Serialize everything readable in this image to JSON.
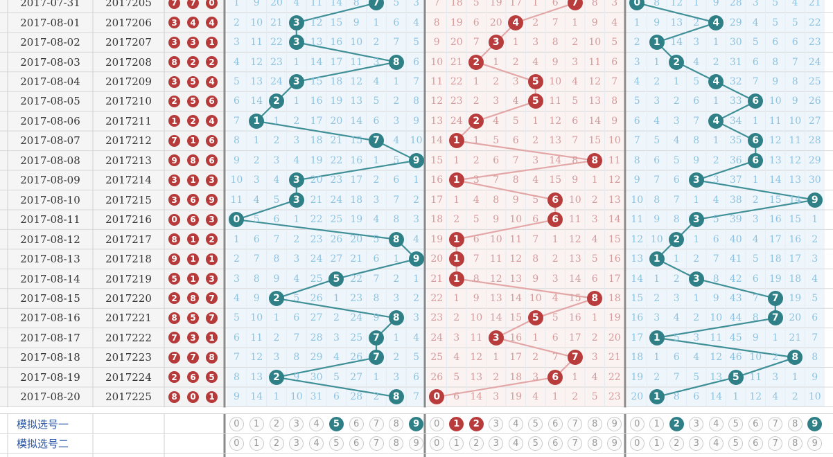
{
  "colors": {
    "teal": "#2f7f86",
    "red": "#b83c3c",
    "blue_digits": "#8ec3df",
    "red_digits": "#d49b9b"
  },
  "rows": [
    {
      "date": "2017-07-31",
      "issue": "2017205",
      "draw": [
        7,
        7,
        0
      ],
      "s1": [
        1,
        9,
        20,
        4,
        11,
        14,
        8,
        "7",
        5,
        3
      ],
      "s2": [
        7,
        18,
        5,
        19,
        17,
        1,
        6,
        "7",
        8,
        3
      ],
      "s3": [
        "0",
        8,
        12,
        1,
        9,
        28,
        3,
        5,
        4,
        21
      ]
    },
    {
      "date": "2017-08-01",
      "issue": "2017206",
      "draw": [
        3,
        4,
        4
      ],
      "s1": [
        2,
        10,
        21,
        "3",
        12,
        15,
        9,
        1,
        6,
        4
      ],
      "s2": [
        8,
        19,
        6,
        20,
        "4",
        2,
        7,
        1,
        9,
        4
      ],
      "s3": [
        1,
        9,
        13,
        2,
        "4",
        29,
        4,
        5,
        5,
        22
      ]
    },
    {
      "date": "2017-08-02",
      "issue": "2017207",
      "draw": [
        3,
        3,
        1
      ],
      "s1": [
        3,
        11,
        22,
        "3",
        13,
        16,
        10,
        2,
        7,
        5
      ],
      "s2": [
        9,
        20,
        7,
        "3",
        1,
        3,
        8,
        2,
        10,
        5
      ],
      "s3": [
        2,
        "1",
        14,
        3,
        1,
        30,
        5,
        6,
        6,
        23
      ]
    },
    {
      "date": "2017-08-03",
      "issue": "2017208",
      "draw": [
        8,
        2,
        2
      ],
      "s1": [
        4,
        12,
        23,
        1,
        14,
        17,
        11,
        3,
        "8",
        6
      ],
      "s2": [
        10,
        21,
        "2",
        1,
        2,
        4,
        9,
        3,
        11,
        6
      ],
      "s3": [
        3,
        1,
        "2",
        4,
        2,
        31,
        6,
        8,
        7,
        24
      ]
    },
    {
      "date": "2017-08-04",
      "issue": "2017209",
      "draw": [
        3,
        5,
        4
      ],
      "s1": [
        5,
        13,
        24,
        "3",
        15,
        18,
        12,
        4,
        1,
        7
      ],
      "s2": [
        11,
        22,
        1,
        2,
        3,
        "5",
        10,
        4,
        12,
        7
      ],
      "s3": [
        4,
        2,
        1,
        5,
        "4",
        32,
        7,
        9,
        8,
        25
      ]
    },
    {
      "date": "2017-08-05",
      "issue": "2017210",
      "draw": [
        2,
        5,
        6
      ],
      "s1": [
        6,
        14,
        "2",
        1,
        16,
        19,
        13,
        5,
        2,
        8
      ],
      "s2": [
        12,
        23,
        2,
        3,
        4,
        "5",
        11,
        5,
        13,
        8
      ],
      "s3": [
        5,
        3,
        2,
        6,
        1,
        33,
        "6",
        10,
        9,
        26
      ]
    },
    {
      "date": "2017-08-06",
      "issue": "2017211",
      "draw": [
        1,
        2,
        4
      ],
      "s1": [
        7,
        "1",
        1,
        2,
        17,
        20,
        14,
        6,
        3,
        9
      ],
      "s2": [
        13,
        24,
        "2",
        4,
        5,
        1,
        12,
        6,
        14,
        9
      ],
      "s3": [
        6,
        4,
        3,
        7,
        "4",
        34,
        1,
        11,
        10,
        27
      ]
    },
    {
      "date": "2017-08-07",
      "issue": "2017212",
      "draw": [
        7,
        1,
        6
      ],
      "s1": [
        8,
        1,
        2,
        3,
        18,
        21,
        15,
        "7",
        4,
        10
      ],
      "s2": [
        14,
        "1",
        1,
        5,
        6,
        2,
        13,
        7,
        15,
        10
      ],
      "s3": [
        7,
        5,
        4,
        8,
        1,
        35,
        "6",
        12,
        11,
        28
      ]
    },
    {
      "date": "2017-08-08",
      "issue": "2017213",
      "draw": [
        9,
        8,
        6
      ],
      "s1": [
        9,
        2,
        3,
        4,
        19,
        22,
        16,
        1,
        5,
        "9"
      ],
      "s2": [
        15,
        1,
        2,
        6,
        7,
        3,
        14,
        8,
        "8",
        11
      ],
      "s3": [
        8,
        6,
        5,
        9,
        2,
        36,
        "6",
        13,
        12,
        29
      ]
    },
    {
      "date": "2017-08-09",
      "issue": "2017214",
      "draw": [
        3,
        1,
        3
      ],
      "s1": [
        10,
        3,
        4,
        "3",
        20,
        23,
        17,
        2,
        6,
        1
      ],
      "s2": [
        16,
        "1",
        3,
        7,
        8,
        4,
        15,
        9,
        1,
        12
      ],
      "s3": [
        9,
        7,
        6,
        "3",
        3,
        37,
        1,
        14,
        13,
        30
      ]
    },
    {
      "date": "2017-08-10",
      "issue": "2017215",
      "draw": [
        3,
        6,
        9
      ],
      "s1": [
        11,
        4,
        5,
        "3",
        21,
        24,
        18,
        3,
        7,
        2
      ],
      "s2": [
        17,
        1,
        4,
        8,
        9,
        5,
        "6",
        10,
        2,
        13
      ],
      "s3": [
        10,
        8,
        7,
        1,
        4,
        38,
        2,
        15,
        14,
        "9"
      ]
    },
    {
      "date": "2017-08-11",
      "issue": "2017216",
      "draw": [
        0,
        6,
        3
      ],
      "s1": [
        "0",
        5,
        6,
        1,
        22,
        25,
        19,
        4,
        8,
        3
      ],
      "s2": [
        18,
        2,
        5,
        9,
        10,
        6,
        "6",
        11,
        3,
        14
      ],
      "s3": [
        11,
        9,
        8,
        "3",
        5,
        39,
        3,
        16,
        15,
        1
      ]
    },
    {
      "date": "2017-08-12",
      "issue": "2017217",
      "draw": [
        8,
        1,
        2
      ],
      "s1": [
        1,
        6,
        7,
        2,
        23,
        26,
        20,
        5,
        "8",
        4
      ],
      "s2": [
        19,
        "1",
        6,
        10,
        11,
        7,
        1,
        12,
        4,
        15
      ],
      "s3": [
        12,
        10,
        "2",
        1,
        6,
        40,
        4,
        17,
        16,
        2
      ]
    },
    {
      "date": "2017-08-13",
      "issue": "2017218",
      "draw": [
        9,
        1,
        1
      ],
      "s1": [
        2,
        7,
        8,
        3,
        24,
        27,
        21,
        6,
        1,
        "9"
      ],
      "s2": [
        20,
        "1",
        7,
        11,
        12,
        8,
        2,
        13,
        5,
        16
      ],
      "s3": [
        13,
        "1",
        1,
        2,
        7,
        41,
        5,
        18,
        17,
        3
      ]
    },
    {
      "date": "2017-08-14",
      "issue": "2017219",
      "draw": [
        5,
        1,
        3
      ],
      "s1": [
        3,
        8,
        9,
        4,
        25,
        "5",
        22,
        7,
        2,
        1
      ],
      "s2": [
        21,
        "1",
        8,
        12,
        13,
        9,
        3,
        14,
        6,
        17
      ],
      "s3": [
        14,
        1,
        2,
        "3",
        8,
        42,
        6,
        19,
        18,
        4
      ]
    },
    {
      "date": "2017-08-15",
      "issue": "2017220",
      "draw": [
        2,
        8,
        7
      ],
      "s1": [
        4,
        9,
        "2",
        5,
        26,
        1,
        23,
        8,
        3,
        2
      ],
      "s2": [
        22,
        1,
        9,
        13,
        14,
        10,
        4,
        15,
        "8",
        18
      ],
      "s3": [
        15,
        2,
        3,
        1,
        9,
        43,
        7,
        "7",
        19,
        5
      ]
    },
    {
      "date": "2017-08-16",
      "issue": "2017221",
      "draw": [
        8,
        5,
        7
      ],
      "s1": [
        5,
        10,
        1,
        6,
        27,
        2,
        24,
        9,
        "8",
        3
      ],
      "s2": [
        23,
        2,
        10,
        14,
        15,
        "5",
        5,
        16,
        1,
        19
      ],
      "s3": [
        16,
        3,
        4,
        2,
        10,
        44,
        8,
        "7",
        20,
        6
      ]
    },
    {
      "date": "2017-08-17",
      "issue": "2017222",
      "draw": [
        7,
        3,
        1
      ],
      "s1": [
        6,
        11,
        2,
        7,
        28,
        3,
        25,
        "7",
        1,
        4
      ],
      "s2": [
        24,
        3,
        11,
        "3",
        16,
        1,
        6,
        17,
        2,
        20
      ],
      "s3": [
        17,
        "1",
        5,
        3,
        11,
        45,
        9,
        1,
        21,
        7
      ]
    },
    {
      "date": "2017-08-18",
      "issue": "2017223",
      "draw": [
        7,
        7,
        8
      ],
      "s1": [
        7,
        12,
        3,
        8,
        29,
        4,
        26,
        "7",
        2,
        5
      ],
      "s2": [
        25,
        4,
        12,
        1,
        17,
        2,
        7,
        "7",
        3,
        21
      ],
      "s3": [
        18,
        1,
        6,
        4,
        12,
        46,
        10,
        2,
        "8",
        8
      ]
    },
    {
      "date": "2017-08-19",
      "issue": "2017224",
      "draw": [
        2,
        6,
        5
      ],
      "s1": [
        8,
        13,
        "2",
        9,
        30,
        5,
        27,
        1,
        3,
        6
      ],
      "s2": [
        26,
        5,
        13,
        2,
        18,
        3,
        "6",
        1,
        4,
        22
      ],
      "s3": [
        19,
        2,
        7,
        5,
        13,
        "5",
        11,
        3,
        1,
        9
      ]
    },
    {
      "date": "2017-08-20",
      "issue": "2017225",
      "draw": [
        8,
        0,
        1
      ],
      "s1": [
        9,
        14,
        1,
        10,
        31,
        6,
        28,
        2,
        "8",
        7
      ],
      "s2": [
        "0",
        6,
        14,
        3,
        19,
        4,
        1,
        2,
        5,
        23
      ],
      "s3": [
        20,
        "1",
        8,
        6,
        14,
        1,
        12,
        4,
        2,
        10
      ]
    }
  ],
  "sim": [
    {
      "label": "模拟选号一",
      "s1": [
        5,
        9
      ],
      "s2": [
        1,
        2
      ],
      "s3": [
        2,
        9
      ]
    },
    {
      "label": "模拟选号二",
      "s1": [],
      "s2": [],
      "s3": []
    }
  ],
  "digits": [
    "0",
    "1",
    "2",
    "3",
    "4",
    "5",
    "6",
    "7",
    "8",
    "9"
  ]
}
